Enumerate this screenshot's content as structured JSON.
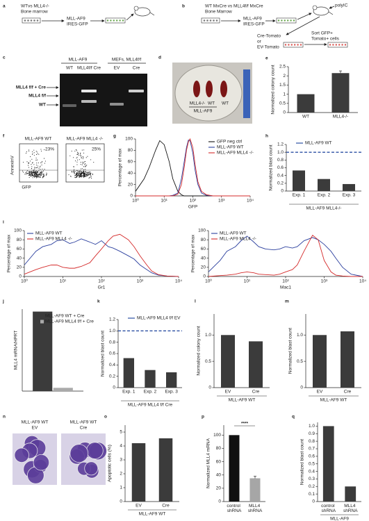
{
  "diagrams": {
    "a": {
      "label": "a",
      "source": "WTvs MLL4-/-",
      "tissue": "Bone marrow",
      "construct": "MLL-AF9",
      "marker": "IRES-GFP"
    },
    "b": {
      "label": "b",
      "source": "WT MxCre vs MLL4f/f MxCre",
      "tissue": "Bone Marrow",
      "construct": "MLL-AF9",
      "marker": "IRES-GFP",
      "treatment": "polyIC",
      "vector1": "Cre-Tomato",
      "or": "or",
      "vector2": "EV-Tomato",
      "sort1": "Sort GFP+",
      "sort2": "Tomato+ cells"
    },
    "c": {
      "label": "c",
      "group1": "MLL-AF9",
      "group2": "MEFs, MLL4f/f",
      "lanes": [
        "WT",
        "MLL4f/f Cre",
        "EV",
        "Cre"
      ],
      "bands": [
        "MLL4 f/f + Cre",
        "MLL4 f/f",
        "WT"
      ]
    },
    "d": {
      "label": "d",
      "plate_labels": [
        "MLL4-/-",
        "WT",
        "WT"
      ],
      "caption": "MLL-AF9"
    },
    "f": {
      "label": "f",
      "plots": [
        {
          "title": "MLL-AF9 WT",
          "percent": "23%"
        },
        {
          "title": "MLL-AF9 MLL4 -/-",
          "percent": "25%"
        }
      ],
      "ylabel": "AnnexinV",
      "xlabel": "GFP"
    },
    "n": {
      "label": "n",
      "images": [
        {
          "title": "MLL-AF9 WT",
          "condition": "EV"
        },
        {
          "title": "MLL-AF9 WT",
          "condition": "Cre"
        }
      ]
    }
  },
  "chart_data": [
    {
      "type": "bar",
      "panel": "e",
      "categories": [
        "WT",
        "MLL4-/-"
      ],
      "values": [
        1,
        2.15
      ],
      "errors": [
        null,
        0.12
      ],
      "color": "#3b3b3b",
      "ylabel": "Normalized colony count",
      "ylim": [
        0,
        2.5
      ],
      "yticks": [
        0,
        0.5,
        1,
        1.5,
        2,
        2.5
      ]
    },
    {
      "type": "line",
      "panel": "g",
      "xscale": "log",
      "xlim": [
        1,
        10000
      ],
      "xticks": [
        {
          "value": 1,
          "label": "10⁰"
        },
        {
          "value": 10,
          "label": "10¹"
        },
        {
          "value": 100,
          "label": "10²"
        },
        {
          "value": 1000,
          "label": "10³"
        },
        {
          "value": 10000,
          "label": "10⁴"
        }
      ],
      "ylim": [
        0,
        100
      ],
      "yticks": [
        0,
        20,
        40,
        60,
        80,
        100
      ],
      "xlabel": "GFP",
      "ylabel": "Percentage of max",
      "legend": "upper right",
      "x": [
        1,
        2,
        3,
        5,
        7,
        10,
        15,
        20,
        30,
        40,
        50,
        60,
        70,
        80,
        100,
        120,
        150,
        200,
        300,
        500,
        1000,
        10000
      ],
      "series": [
        {
          "name": "GFP neg ctrl",
          "color": "#111111",
          "values": [
            8,
            30,
            50,
            80,
            97,
            90,
            60,
            30,
            8,
            2,
            0,
            0,
            0,
            0,
            0,
            0,
            0,
            0,
            0,
            0,
            0,
            0
          ]
        },
        {
          "name": "MLL-AF9 WT",
          "color": "#2b3f9e",
          "values": [
            0,
            0,
            0,
            0,
            0,
            0,
            0,
            1,
            5,
            30,
            60,
            85,
            98,
            97,
            75,
            45,
            20,
            5,
            1,
            0,
            0,
            0
          ]
        },
        {
          "name": "MLL-AF9 MLL4 -/-",
          "color": "#d42a2a",
          "values": [
            0,
            0,
            0,
            0,
            0,
            0,
            0,
            0,
            3,
            20,
            50,
            80,
            95,
            100,
            85,
            55,
            25,
            8,
            2,
            0,
            0,
            0
          ]
        }
      ]
    },
    {
      "type": "bar",
      "panel": "h",
      "categories": [
        "Exp. 1",
        "Exp. 2",
        "Exp. 3"
      ],
      "values": [
        0.53,
        0.31,
        0.18
      ],
      "color": "#3b3b3b",
      "reference": {
        "value": 1,
        "label": "MLL-AF9 WT",
        "color": "#2b4fa3"
      },
      "xlabel": "MLL-AF9 MLL4-/-",
      "ylabel": "Normalized blast count",
      "ylim": [
        0,
        1.2
      ],
      "yticks": [
        0,
        0.2,
        0.4,
        0.6,
        0.8,
        {
          "value": 1,
          "label": "1.0"
        },
        1.2
      ]
    },
    {
      "type": "line",
      "panel": "i",
      "xscale": "log",
      "xlim": [
        1,
        10000
      ],
      "xticks": [
        {
          "value": 1,
          "label": "10⁰"
        },
        {
          "value": 10,
          "label": "10¹"
        },
        {
          "value": 100,
          "label": "10²"
        },
        {
          "value": 1000,
          "label": "10³"
        },
        {
          "value": 10000,
          "label": "10⁴"
        }
      ],
      "ylim": [
        0,
        100
      ],
      "yticks": [
        0,
        20,
        40,
        60,
        80,
        100
      ],
      "xlabel": "Gr1",
      "ylabel": "Percentage of max",
      "legend": "upper left",
      "x": [
        1,
        2,
        3,
        5,
        7,
        10,
        15,
        20,
        30,
        50,
        70,
        100,
        150,
        200,
        300,
        500,
        700,
        1000,
        1500,
        2000,
        3000,
        5000,
        10000
      ],
      "series": [
        {
          "name": "MLL-AF9 WT",
          "color": "#2b3f9e",
          "values": [
            25,
            55,
            65,
            70,
            78,
            80,
            72,
            75,
            82,
            75,
            70,
            78,
            65,
            62,
            55,
            45,
            38,
            25,
            15,
            8,
            3,
            1,
            0
          ]
        },
        {
          "name": "MLL-AF9 MLL4 -/-",
          "color": "#d42a2a",
          "values": [
            5,
            15,
            20,
            25,
            25,
            20,
            18,
            18,
            22,
            30,
            45,
            60,
            78,
            88,
            92,
            80,
            65,
            45,
            25,
            12,
            4,
            1,
            0
          ]
        }
      ]
    },
    {
      "type": "line",
      "xscale": "log",
      "xlim": [
        1,
        10000
      ],
      "xticks": [
        {
          "value": 1,
          "label": "10⁰"
        },
        {
          "value": 10,
          "label": "10¹"
        },
        {
          "value": 100,
          "label": "10²"
        },
        {
          "value": 1000,
          "label": "10³"
        },
        {
          "value": 10000,
          "label": "10⁴"
        }
      ],
      "ylim": [
        0,
        100
      ],
      "yticks": [
        0,
        20,
        40,
        60,
        80,
        100
      ],
      "xlabel": "Mac1",
      "ylabel": "Percentage of max",
      "legend": "upper left",
      "x": [
        1,
        2,
        3,
        5,
        7,
        10,
        15,
        20,
        30,
        50,
        70,
        100,
        150,
        200,
        300,
        500,
        700,
        1000,
        1500,
        2000,
        3000,
        5000,
        10000
      ],
      "series": [
        {
          "name": "MLL-AF9 WT",
          "color": "#2b3f9e",
          "values": [
            10,
            35,
            55,
            65,
            78,
            88,
            75,
            65,
            60,
            58,
            60,
            65,
            62,
            65,
            78,
            85,
            80,
            70,
            55,
            40,
            20,
            5,
            0
          ]
        },
        {
          "name": "MLL-AF9 MLL4 -/-",
          "color": "#d42a2a",
          "values": [
            0,
            2,
            3,
            5,
            8,
            10,
            8,
            5,
            4,
            3,
            5,
            10,
            15,
            25,
            55,
            90,
            80,
            35,
            10,
            3,
            1,
            0,
            0
          ]
        }
      ]
    },
    {
      "type": "bar",
      "panel": "j",
      "categories": [
        null
      ],
      "ylabel": "MLL4 mRNA/HPRT",
      "ylim": [
        0,
        10
      ],
      "legend": "upper right",
      "series": [
        {
          "name": "MLL-AF9 WT + Cre",
          "color": "#3b3b3b",
          "values": [
            9.7
          ]
        },
        {
          "name": "MLL-AF9 MLL4 f/f + Cre",
          "color": "#aaaaaa",
          "values": [
            0.4
          ]
        }
      ]
    },
    {
      "type": "bar",
      "panel": "k",
      "categories": [
        "Exp. 1",
        "Exp. 2",
        "Exp. 3"
      ],
      "values": [
        0.52,
        0.31,
        0.27
      ],
      "color": "#3b3b3b",
      "reference": {
        "value": 1,
        "label": "MLL-AF9 MLL4 f/f EV",
        "color": "#2b4fa3"
      },
      "xlabel": "MLL-AF9 MLL4 f/f Cre",
      "ylabel": "Normalized blast count",
      "ylim": [
        0,
        1.2
      ],
      "yticks": [
        0,
        0.2,
        0.4,
        0.6,
        0.8,
        {
          "value": 1,
          "label": "1.0"
        },
        1.2
      ]
    },
    {
      "type": "bar",
      "panel": "l",
      "categories": [
        "EV",
        "Cre"
      ],
      "values": [
        1.0,
        0.88
      ],
      "color": "#3b3b3b",
      "xlabel": "MLL-AF9 WT",
      "ylabel": "Normalized colony count",
      "ylim": [
        0,
        1.4
      ],
      "yticks": [
        0,
        0.5,
        {
          "value": 1,
          "label": "1.0"
        }
      ]
    },
    {
      "type": "bar",
      "panel": "m",
      "categories": [
        "EV",
        "Cre"
      ],
      "values": [
        1.0,
        1.07
      ],
      "color": "#3b3b3b",
      "xlabel": "MLL-AF9 WT",
      "ylabel": "Normalized blast count",
      "ylim": [
        0,
        1.4
      ],
      "yticks": [
        0,
        0.5,
        {
          "value": 1,
          "label": "1.0"
        }
      ]
    },
    {
      "type": "bar",
      "panel": "o",
      "categories": [
        "EV",
        "Cre"
      ],
      "values": [
        4.2,
        4.55
      ],
      "color": "#3b3b3b",
      "xlabel": "MLL-AF9 WT",
      "ylabel": "Apoptotic cells (%)",
      "ylim": [
        0,
        5.5
      ],
      "yticks": [
        0,
        1,
        2,
        3,
        4,
        5
      ]
    },
    {
      "type": "bar",
      "panel": "p",
      "categories": [
        "control shRNA",
        "MLL4 shRNA"
      ],
      "values": [
        100,
        35
      ],
      "errors": [
        null,
        3
      ],
      "colors": [
        "#111111",
        "#a6a6a6"
      ],
      "annotation": "****",
      "ylabel": "Normalized MLL4 mRNA",
      "ylim": [
        0,
        115
      ],
      "yticks": [
        0,
        20,
        40,
        60,
        80,
        100
      ]
    },
    {
      "type": "bar",
      "panel": "q",
      "categories": [
        "control shRNA",
        "MLL4 shRNA"
      ],
      "values": [
        1.0,
        0.2
      ],
      "color": "#3b3b3b",
      "xlabel": "MLL-AF9",
      "ylabel": "Normalized blast count",
      "ylim": [
        0,
        1.05
      ],
      "yticks": [
        0,
        0.1,
        0.2,
        0.3,
        0.4,
        0.5,
        0.6,
        0.7,
        0.8,
        0.9,
        {
          "value": 1,
          "label": "1.0"
        }
      ]
    }
  ]
}
